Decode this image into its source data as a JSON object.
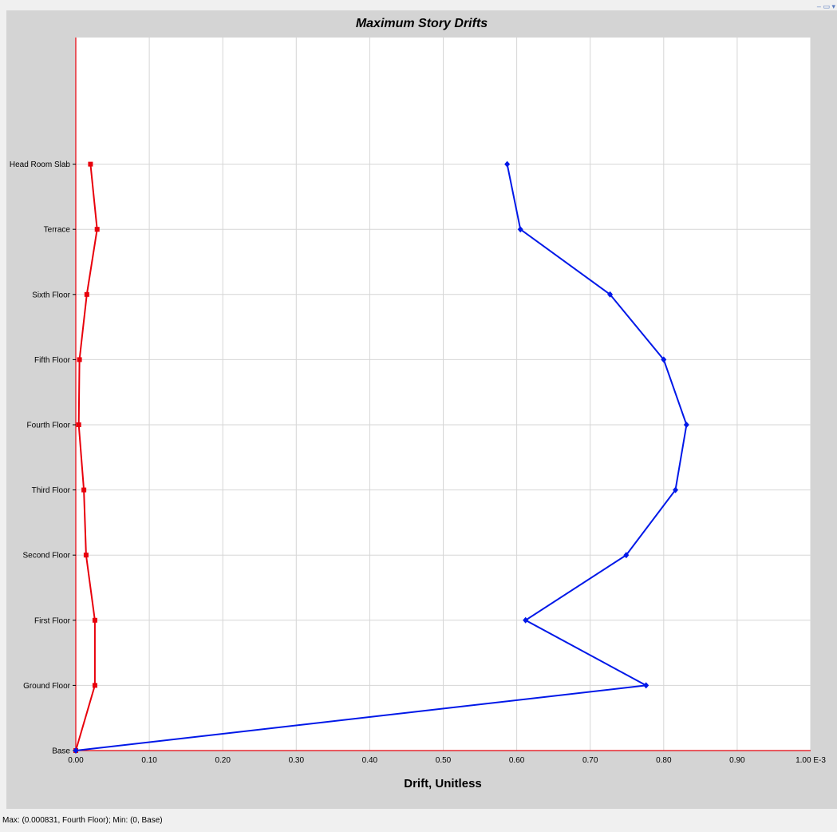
{
  "window": {
    "title": "Maximum Story Drifts"
  },
  "status_bar": {
    "text": "Max: (0.000831, Fourth Floor);  Min: (0, Base)"
  },
  "colors": {
    "series_x": "#e8000b",
    "series_y": "#0018e8",
    "grid": "#d6d6d6",
    "frame": "#d4d4d4"
  },
  "chart_data": {
    "type": "line",
    "title": "Maximum Story Drifts",
    "xlabel": "Drift, Unitless",
    "ylabel": "",
    "x_unit_suffix": "E-3",
    "xlim": [
      0,
      1.0
    ],
    "x_ticks": [
      "0.00",
      "0.10",
      "0.20",
      "0.30",
      "0.40",
      "0.50",
      "0.60",
      "0.70",
      "0.80",
      "0.90",
      "1.00 E-3"
    ],
    "categories": [
      "Base",
      "Ground Floor",
      "First Floor",
      "Second Floor",
      "Third Floor",
      "Fourth Floor",
      "Fifth Floor",
      "Sixth Floor",
      "Terrace",
      "Head Room Slab"
    ],
    "grid": true,
    "series": [
      {
        "color": "#e8000b",
        "marker": "square",
        "values": [
          0.0,
          0.026,
          0.026,
          0.014,
          0.011,
          0.004,
          0.005,
          0.015,
          0.029,
          0.02
        ]
      },
      {
        "color": "#0018e8",
        "marker": "diamond",
        "values": [
          0.0,
          0.776,
          0.612,
          0.749,
          0.816,
          0.831,
          0.8,
          0.727,
          0.605,
          0.587
        ]
      }
    ]
  }
}
